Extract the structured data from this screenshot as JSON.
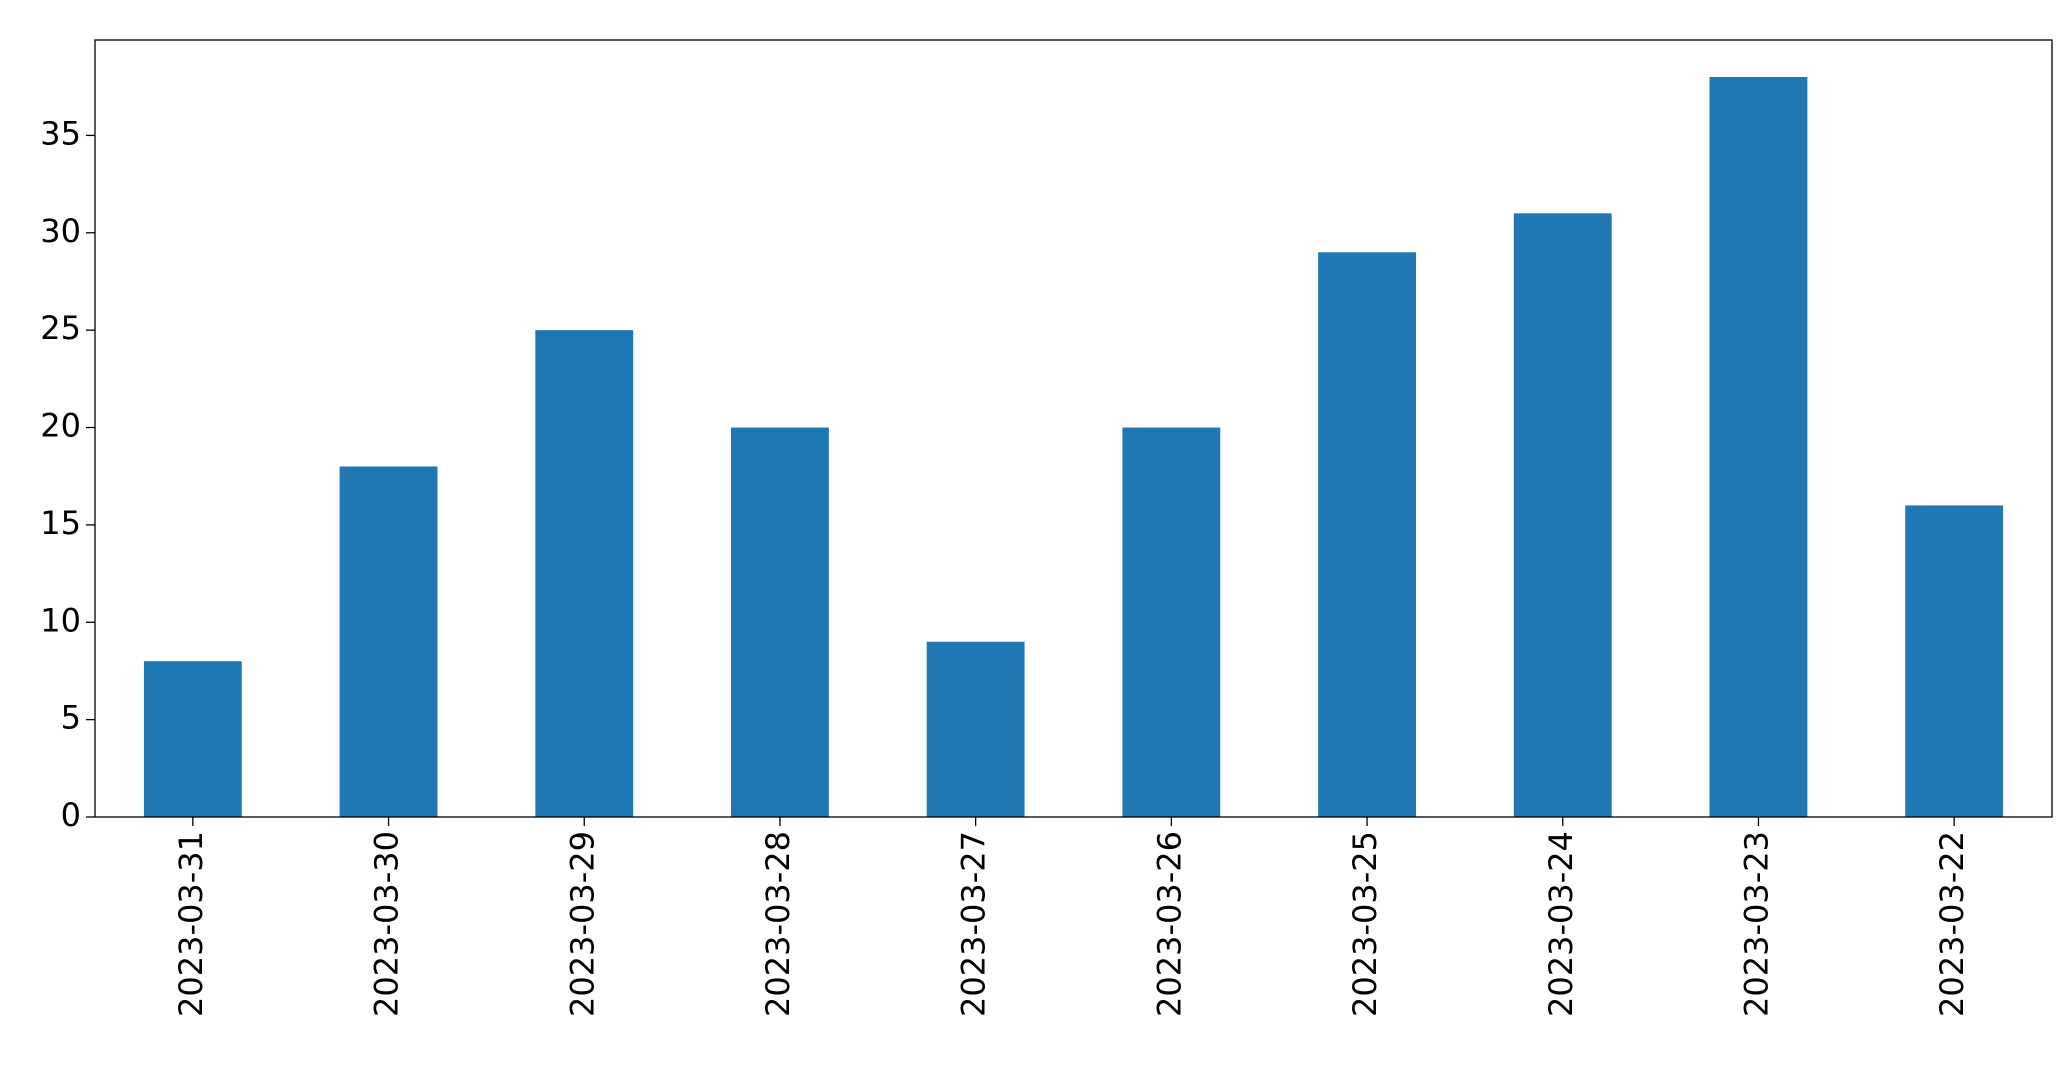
{
  "chart_data": {
    "type": "bar",
    "categories": [
      "2023-03-31",
      "2023-03-30",
      "2023-03-29",
      "2023-03-28",
      "2023-03-27",
      "2023-03-26",
      "2023-03-25",
      "2023-03-24",
      "2023-03-23",
      "2023-03-22"
    ],
    "values": [
      8,
      18,
      25,
      20,
      9,
      20,
      29,
      31,
      38,
      16
    ],
    "color": "#1f77b4",
    "ylim": [
      0,
      39.9
    ],
    "yticks": [
      0,
      5,
      10,
      15,
      20,
      25,
      30,
      35
    ],
    "grid": false
  }
}
